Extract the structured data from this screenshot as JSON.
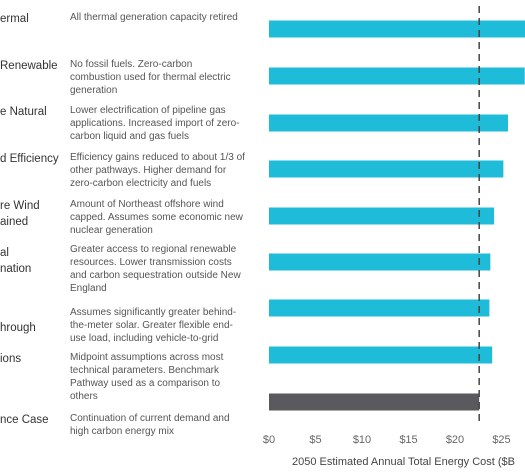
{
  "chart_data": {
    "type": "bar",
    "orientation": "horizontal",
    "categories": [
      "ermal",
      "Renewable",
      "e Natural",
      "d Efficiency",
      "re Wind\nained",
      "al\nnation",
      "hrough",
      "ions",
      "nce Case"
    ],
    "descriptions": [
      "All thermal generation capacity retired",
      "No fossil fuels. Zero-carbon\ncombustion used for thermal electric\ngeneration",
      "Lower electrification of pipeline gas\napplications. Increased import of zero-\ncarbon liquid and gas fuels",
      "Efficiency gains reduced to about 1/3 of\nother pathways. Higher demand for\nzero-carbon electricity and fuels",
      "Amount of Northeast offshore wind\ncapped. Assumes some economic new\nnuclear generation",
      "Greater access to regional renewable\nresources. Lower transmission costs\nand carbon sequestration outside New\nEngland",
      "Assumes significantly greater behind-\nthe-meter solar. Greater flexible end-\nuse load, including vehicle-to-grid",
      "Midpoint assumptions across most\ntechnical parameters. Benchmark\nPathway used as a comparison to\nothers",
      "Continuation of current demand and\nhigh carbon energy mix"
    ],
    "values": [
      28,
      27.5,
      25.7,
      25.2,
      24.2,
      23.8,
      23.7,
      24.0,
      22.6
    ],
    "bar_colors": [
      "#1ebcd8",
      "#1ebcd8",
      "#1ebcd8",
      "#1ebcd8",
      "#1ebcd8",
      "#1ebcd8",
      "#1ebcd8",
      "#1ebcd8",
      "#5a5a5e"
    ],
    "reference_line": 22.6,
    "xlim": [
      0,
      27
    ],
    "xticks": [
      "$0",
      "$5",
      "$10",
      "$15",
      "$20",
      "$25"
    ],
    "xtick_values": [
      0,
      5,
      10,
      15,
      20,
      25
    ],
    "xlabel": "2050 Estimated Annual Total Energy Cost ($B",
    "grid": "vertical dashed reference only",
    "legend": "none"
  }
}
